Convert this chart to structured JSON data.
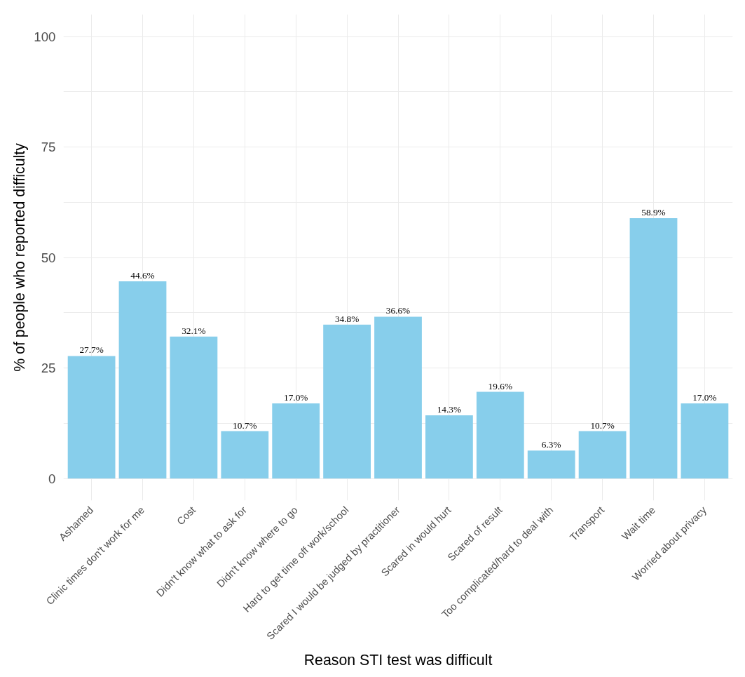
{
  "chart_data": {
    "type": "bar",
    "xlabel": "Reason STI test was difficult",
    "ylabel": "% of people who reported difficulty",
    "categories": [
      "Ashamed",
      "Clinic times don't work for me",
      "Cost",
      "Didn't know what to ask for",
      "Didn't know where to go",
      "Hard to get time off work/school",
      "Scared I would be judged by practitioner",
      "Scared in would hurt",
      "Scared of result",
      "Too complicated/hard to deal with",
      "Transport",
      "Wait time",
      "Worried about privacy"
    ],
    "values": [
      27.7,
      44.6,
      32.1,
      10.7,
      17.0,
      34.8,
      36.6,
      14.3,
      19.6,
      6.3,
      10.7,
      58.9,
      17.0
    ],
    "value_labels": [
      "27.7%",
      "44.6%",
      "32.1%",
      "10.7%",
      "17.0%",
      "34.8%",
      "36.6%",
      "14.3%",
      "19.6%",
      "6.3%",
      "10.7%",
      "58.9%",
      "17.0%"
    ],
    "color": "#87ceeb",
    "ylim": [
      -5,
      105
    ],
    "yticks": [
      0,
      {
        "value": 12.5,
        "label": null
      },
      25,
      {
        "value": 37.5,
        "label": null
      },
      50,
      {
        "value": 62.5,
        "label": null
      },
      75,
      {
        "value": 87.5,
        "label": null
      },
      100
    ],
    "grid": true
  }
}
